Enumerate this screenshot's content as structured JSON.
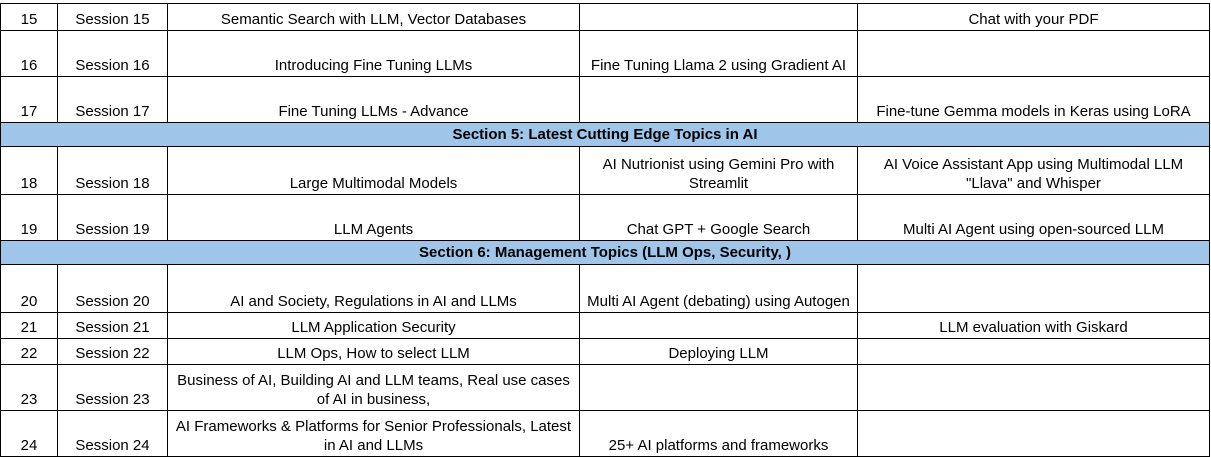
{
  "rows": [
    {
      "type": "session",
      "num": "15",
      "session": "Session 15",
      "topic": "Semantic Search with LLM, Vector Databases",
      "project1": "",
      "project2": "Chat with your PDF"
    },
    {
      "type": "session",
      "num": "16",
      "session": "Session 16",
      "topic": "Introducing Fine Tuning LLMs",
      "project1": "Fine Tuning Llama 2 using Gradient AI",
      "project2": ""
    },
    {
      "type": "session",
      "num": "17",
      "session": "Session 17",
      "topic": "Fine Tuning LLMs - Advance",
      "project1": "",
      "project2": "Fine-tune Gemma models in Keras using LoRA"
    },
    {
      "type": "section",
      "title": "Section 5: Latest Cutting Edge Topics in AI"
    },
    {
      "type": "session",
      "num": "18",
      "session": "Session 18",
      "topic": "Large Multimodal Models",
      "project1": "AI Nutrionist using Gemini Pro with Streamlit",
      "project2": "AI Voice Assistant App using Multimodal LLM \"Llava\" and Whisper"
    },
    {
      "type": "session",
      "num": "19",
      "session": "Session 19",
      "topic": "LLM Agents",
      "project1": "Chat GPT + Google Search",
      "project2": "Multi AI Agent using open-sourced LLM"
    },
    {
      "type": "section",
      "title": "Section 6: Management Topics (LLM Ops, Security, )"
    },
    {
      "type": "session",
      "num": "20",
      "session": "Session 20",
      "topic": "AI and Society, Regulations in AI and LLMs",
      "project1": "Multi AI Agent (debating) using Autogen",
      "project2": ""
    },
    {
      "type": "session",
      "num": "21",
      "session": "Session 21",
      "topic": "LLM Application Security",
      "project1": "",
      "project2": "LLM evaluation with Giskard"
    },
    {
      "type": "session",
      "num": "22",
      "session": "Session 22",
      "topic": "LLM Ops, How to select LLM",
      "project1": "Deploying LLM",
      "project2": ""
    },
    {
      "type": "session",
      "num": "23",
      "session": "Session 23",
      "topic": "Business of AI, Building AI and LLM teams, Real use cases of AI in business,",
      "project1": "",
      "project2": ""
    },
    {
      "type": "session",
      "num": "24",
      "session": "Session 24",
      "topic": "AI Frameworks & Platforms for Senior Professionals, Latest in AI and LLMs",
      "project1": "25+ AI platforms and frameworks",
      "project2": ""
    }
  ],
  "colors": {
    "section_bg": "#9fc5e8",
    "border": "#000000"
  }
}
